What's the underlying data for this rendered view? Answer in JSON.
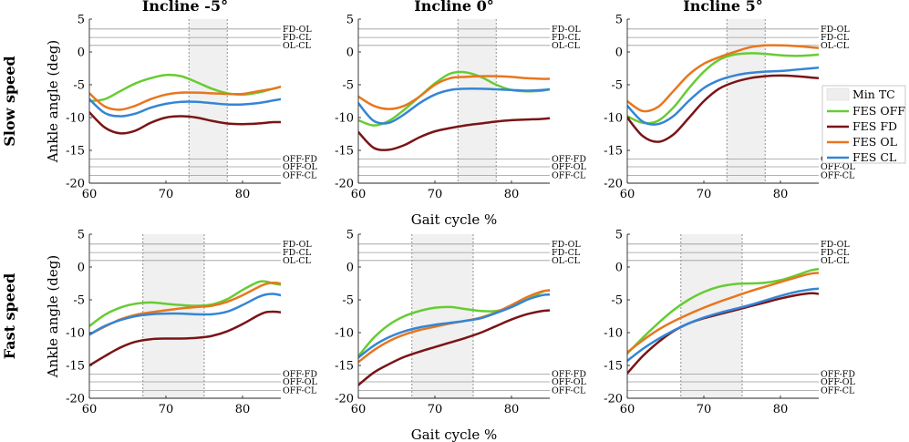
{
  "figure": {
    "row_labels": [
      "Slow speed",
      "Fast speed"
    ],
    "col_titles": [
      "Incline -5°",
      "Incline 0°",
      "Incline 5°"
    ],
    "ylabel": "Ankle angle (deg)",
    "xlabel": "Gait cycle %",
    "top_sig_labels": [
      "FD-OL",
      "FD-CL",
      "OL-CL"
    ],
    "bottom_sig_labels": [
      "OFF-FD",
      "OFF-OL",
      "OFF-CL"
    ],
    "legend": [
      {
        "name": "Min TC",
        "kind": "patch",
        "color": "#eeeeee"
      },
      {
        "name": "FES OFF",
        "kind": "line",
        "color": "#66cc33"
      },
      {
        "name": "FES FD",
        "kind": "line",
        "color": "#7a1416"
      },
      {
        "name": "FES OL",
        "kind": "line",
        "color": "#e8761e"
      },
      {
        "name": "FES CL",
        "kind": "line",
        "color": "#3385d6"
      }
    ]
  },
  "chart_data": [
    {
      "type": "line",
      "row": 0,
      "col": 0,
      "title": "Incline -5°",
      "xlabel": "",
      "ylabel": "Ankle angle (deg)",
      "xlim": [
        60,
        85
      ],
      "ylim": [
        -20,
        5
      ],
      "xticks": [
        60,
        70,
        80
      ],
      "yticks": [
        5,
        0,
        -5,
        -10,
        -15,
        -20
      ],
      "min_tc": [
        73,
        78
      ],
      "x": [
        60,
        62,
        64,
        66,
        68,
        70,
        72,
        74,
        76,
        78,
        80,
        82,
        84,
        85
      ],
      "series": [
        {
          "name": "FES OFF",
          "color": "#66cc33",
          "values": [
            -7.5,
            -7.2,
            -6.0,
            -4.8,
            -4.0,
            -3.5,
            -3.7,
            -4.6,
            -5.6,
            -6.3,
            -6.5,
            -6.2,
            -5.6,
            -5.3
          ]
        },
        {
          "name": "FES FD",
          "color": "#7a1416",
          "values": [
            -9.2,
            -11.5,
            -12.4,
            -12.0,
            -10.8,
            -10.0,
            -9.8,
            -10.0,
            -10.5,
            -10.9,
            -11.0,
            -10.9,
            -10.7,
            -10.7
          ]
        },
        {
          "name": "FES OL",
          "color": "#e8761e",
          "values": [
            -6.3,
            -8.3,
            -8.8,
            -8.2,
            -7.2,
            -6.5,
            -6.2,
            -6.2,
            -6.3,
            -6.4,
            -6.4,
            -6.0,
            -5.6,
            -5.3
          ]
        },
        {
          "name": "FES CL",
          "color": "#3385d6",
          "values": [
            -7.2,
            -9.3,
            -9.8,
            -9.4,
            -8.5,
            -7.9,
            -7.6,
            -7.6,
            -7.8,
            -8.0,
            -8.0,
            -7.8,
            -7.4,
            -7.2
          ]
        }
      ]
    },
    {
      "type": "line",
      "row": 0,
      "col": 1,
      "title": "Incline 0°",
      "xlabel": "Gait cycle %",
      "ylabel": "",
      "xlim": [
        60,
        85
      ],
      "ylim": [
        -20,
        5
      ],
      "xticks": [
        60,
        70,
        80
      ],
      "yticks": [
        5,
        0,
        -5,
        -10,
        -15,
        -20
      ],
      "min_tc": [
        73,
        78
      ],
      "x": [
        60,
        62,
        64,
        66,
        68,
        70,
        72,
        74,
        76,
        78,
        80,
        82,
        84,
        85
      ],
      "series": [
        {
          "name": "FES OFF",
          "color": "#66cc33",
          "values": [
            -10.4,
            -11.2,
            -10.5,
            -8.8,
            -6.8,
            -4.8,
            -3.3,
            -3.1,
            -3.8,
            -5.0,
            -5.8,
            -6.0,
            -5.9,
            -5.7
          ]
        },
        {
          "name": "FES FD",
          "color": "#7a1416",
          "values": [
            -12.2,
            -14.6,
            -14.9,
            -14.2,
            -13.0,
            -12.1,
            -11.6,
            -11.2,
            -10.9,
            -10.6,
            -10.4,
            -10.3,
            -10.2,
            -10.1
          ]
        },
        {
          "name": "FES OL",
          "color": "#e8761e",
          "values": [
            -6.8,
            -8.2,
            -8.7,
            -8.2,
            -6.8,
            -5.0,
            -4.0,
            -3.8,
            -3.7,
            -3.7,
            -3.8,
            -4.0,
            -4.1,
            -4.1
          ]
        },
        {
          "name": "FES CL",
          "color": "#3385d6",
          "values": [
            -7.8,
            -10.5,
            -10.8,
            -9.5,
            -7.8,
            -6.5,
            -5.8,
            -5.6,
            -5.6,
            -5.7,
            -5.8,
            -5.9,
            -5.8,
            -5.7
          ]
        }
      ]
    },
    {
      "type": "line",
      "row": 0,
      "col": 2,
      "title": "Incline 5°",
      "xlabel": "",
      "ylabel": "",
      "xlim": [
        60,
        85
      ],
      "ylim": [
        -20,
        5
      ],
      "xticks": [
        60,
        70,
        80
      ],
      "yticks": [
        5,
        0,
        -5,
        -10,
        -15,
        -20
      ],
      "min_tc": [
        73,
        78
      ],
      "x": [
        60,
        62,
        64,
        66,
        68,
        70,
        72,
        74,
        76,
        78,
        80,
        82,
        84,
        85
      ],
      "series": [
        {
          "name": "FES OFF",
          "color": "#66cc33",
          "values": [
            -9.8,
            -10.8,
            -10.5,
            -8.5,
            -5.6,
            -3.0,
            -1.2,
            -0.4,
            -0.2,
            -0.3,
            -0.5,
            -0.6,
            -0.5,
            -0.4
          ]
        },
        {
          "name": "FES FD",
          "color": "#7a1416",
          "values": [
            -10.0,
            -12.8,
            -13.7,
            -12.6,
            -10.1,
            -7.5,
            -5.6,
            -4.6,
            -4.0,
            -3.7,
            -3.6,
            -3.7,
            -3.9,
            -4.0
          ]
        },
        {
          "name": "FES OL",
          "color": "#e8761e",
          "values": [
            -7.5,
            -9.0,
            -8.4,
            -6.0,
            -3.5,
            -1.8,
            -0.8,
            0.0,
            0.7,
            1.0,
            1.0,
            0.9,
            0.7,
            0.6
          ]
        },
        {
          "name": "FES CL",
          "color": "#3385d6",
          "values": [
            -8.2,
            -10.6,
            -11.0,
            -9.8,
            -7.5,
            -5.5,
            -4.3,
            -3.6,
            -3.2,
            -3.0,
            -2.9,
            -2.7,
            -2.5,
            -2.4
          ]
        }
      ]
    },
    {
      "type": "line",
      "row": 1,
      "col": 0,
      "title": "",
      "xlabel": "",
      "ylabel": "Ankle angle (deg)",
      "xlim": [
        60,
        85
      ],
      "ylim": [
        -20,
        5
      ],
      "xticks": [
        60,
        70,
        80
      ],
      "yticks": [
        5,
        0,
        -5,
        -10,
        -15,
        -20
      ],
      "min_tc": [
        67,
        75
      ],
      "x": [
        60,
        62,
        64,
        66,
        68,
        70,
        72,
        74,
        76,
        78,
        80,
        82,
        83,
        84,
        85
      ],
      "series": [
        {
          "name": "FES OFF",
          "color": "#66cc33",
          "values": [
            -9.0,
            -7.3,
            -6.2,
            -5.6,
            -5.4,
            -5.6,
            -5.8,
            -5.9,
            -5.7,
            -4.9,
            -3.5,
            -2.3,
            -2.2,
            -2.5,
            -2.7
          ]
        },
        {
          "name": "FES FD",
          "color": "#7a1416",
          "values": [
            -15.0,
            -13.6,
            -12.3,
            -11.4,
            -11.0,
            -10.9,
            -10.9,
            -10.8,
            -10.5,
            -9.8,
            -8.7,
            -7.4,
            -6.9,
            -6.8,
            -6.9
          ]
        },
        {
          "name": "FES OL",
          "color": "#e8761e",
          "values": [
            -10.3,
            -9.1,
            -8.0,
            -7.3,
            -6.9,
            -6.6,
            -6.3,
            -6.1,
            -5.9,
            -5.3,
            -4.3,
            -3.1,
            -2.6,
            -2.4,
            -2.5
          ]
        },
        {
          "name": "FES CL",
          "color": "#3385d6",
          "values": [
            -10.3,
            -9.0,
            -8.1,
            -7.5,
            -7.2,
            -7.1,
            -7.1,
            -7.2,
            -7.2,
            -6.8,
            -5.8,
            -4.6,
            -4.2,
            -4.1,
            -4.3
          ]
        }
      ]
    },
    {
      "type": "line",
      "row": 1,
      "col": 1,
      "title": "",
      "xlabel": "Gait cycle %",
      "ylabel": "",
      "xlim": [
        60,
        85
      ],
      "ylim": [
        -20,
        5
      ],
      "xticks": [
        60,
        70,
        80
      ],
      "yticks": [
        5,
        0,
        -5,
        -10,
        -15,
        -20
      ],
      "min_tc": [
        67,
        75
      ],
      "x": [
        60,
        62,
        64,
        66,
        68,
        70,
        72,
        74,
        76,
        78,
        80,
        82,
        84,
        85
      ],
      "series": [
        {
          "name": "FES OFF",
          "color": "#66cc33",
          "values": [
            -13.6,
            -10.8,
            -8.8,
            -7.5,
            -6.7,
            -6.2,
            -6.1,
            -6.4,
            -6.7,
            -6.7,
            -6.1,
            -5.0,
            -3.8,
            -3.5
          ]
        },
        {
          "name": "FES FD",
          "color": "#7a1416",
          "values": [
            -18.0,
            -16.1,
            -14.8,
            -13.7,
            -12.9,
            -12.2,
            -11.5,
            -10.8,
            -10.0,
            -9.0,
            -8.0,
            -7.2,
            -6.7,
            -6.6
          ]
        },
        {
          "name": "FES OL",
          "color": "#e8761e",
          "values": [
            -14.5,
            -12.7,
            -11.3,
            -10.3,
            -9.6,
            -9.1,
            -8.6,
            -8.2,
            -7.7,
            -6.9,
            -5.8,
            -4.6,
            -3.7,
            -3.6
          ]
        },
        {
          "name": "FES CL",
          "color": "#3385d6",
          "values": [
            -13.8,
            -12.0,
            -10.7,
            -9.8,
            -9.2,
            -8.8,
            -8.5,
            -8.2,
            -7.8,
            -7.0,
            -6.1,
            -5.0,
            -4.3,
            -4.2
          ]
        }
      ]
    },
    {
      "type": "line",
      "row": 1,
      "col": 2,
      "title": "",
      "xlabel": "",
      "ylabel": "",
      "xlim": [
        60,
        85
      ],
      "ylim": [
        -20,
        5
      ],
      "xticks": [
        60,
        70,
        80
      ],
      "yticks": [
        5,
        0,
        -5,
        -10,
        -15,
        -20
      ],
      "min_tc": [
        67,
        75
      ],
      "x": [
        60,
        62,
        64,
        66,
        68,
        70,
        72,
        74,
        76,
        78,
        80,
        82,
        84,
        85
      ],
      "series": [
        {
          "name": "FES OFF",
          "color": "#66cc33",
          "values": [
            -13.2,
            -10.8,
            -8.6,
            -6.6,
            -5.0,
            -3.8,
            -3.0,
            -2.6,
            -2.5,
            -2.4,
            -2.0,
            -1.3,
            -0.5,
            -0.3
          ]
        },
        {
          "name": "FES FD",
          "color": "#7a1416",
          "values": [
            -16.2,
            -13.6,
            -11.5,
            -9.8,
            -8.6,
            -7.8,
            -7.2,
            -6.6,
            -6.0,
            -5.4,
            -4.8,
            -4.3,
            -4.0,
            -4.1
          ]
        },
        {
          "name": "FES OL",
          "color": "#e8761e",
          "values": [
            -13.0,
            -11.2,
            -9.6,
            -8.3,
            -7.2,
            -6.2,
            -5.3,
            -4.5,
            -3.7,
            -3.0,
            -2.3,
            -1.6,
            -1.0,
            -0.9
          ]
        },
        {
          "name": "FES CL",
          "color": "#3385d6",
          "values": [
            -14.3,
            -12.5,
            -11.0,
            -9.7,
            -8.6,
            -7.7,
            -7.0,
            -6.4,
            -5.8,
            -5.1,
            -4.4,
            -3.8,
            -3.4,
            -3.3
          ]
        }
      ]
    }
  ]
}
